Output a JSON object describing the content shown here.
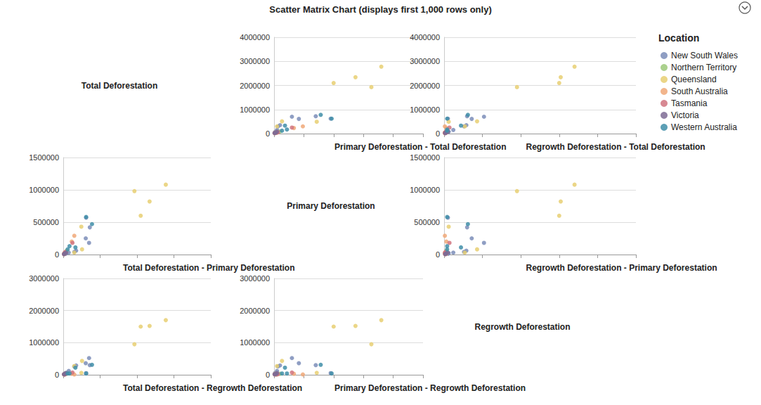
{
  "chart_data": {
    "type": "scatter",
    "title": "Scatter Matrix Chart (displays first 1,000 rows only)",
    "legend": "right",
    "legend_title": "Location",
    "grid": true,
    "tick_labels": "y",
    "marker": "circle",
    "variables": [
      "Total Deforestation",
      "Primary Deforestation",
      "Regrowth Deforestation"
    ],
    "series": [
      {
        "name": "New South Wales",
        "color": "#7b8db8",
        "values": [
          [
            700000,
            180000,
            520000
          ],
          [
            610000,
            250000,
            360000
          ],
          [
            720000,
            420000,
            300000
          ],
          [
            620000,
            570000,
            50000
          ],
          [
            350000,
            60000,
            290000
          ],
          [
            300000,
            40000,
            260000
          ],
          [
            150000,
            30000,
            120000
          ],
          [
            80000,
            20000,
            60000
          ],
          [
            60000,
            10000,
            50000
          ]
        ]
      },
      {
        "name": "Northern Territory",
        "color": "#9cc97a",
        "values": [
          [
            90000,
            60000,
            30000
          ],
          [
            50000,
            30000,
            20000
          ],
          [
            30000,
            20000,
            10000
          ]
        ]
      },
      {
        "name": "Queensland",
        "color": "#e8cf72",
        "values": [
          [
            1930000,
            980000,
            950000
          ],
          [
            2100000,
            600000,
            1500000
          ],
          [
            2340000,
            820000,
            1520000
          ],
          [
            2780000,
            1080000,
            1700000
          ],
          [
            490000,
            430000,
            60000
          ],
          [
            510000,
            80000,
            430000
          ],
          [
            300000,
            30000,
            270000
          ]
        ]
      },
      {
        "name": "South Australia",
        "color": "#f0a878",
        "values": [
          [
            300000,
            290000,
            10000
          ],
          [
            230000,
            200000,
            30000
          ],
          [
            40000,
            10000,
            30000
          ],
          [
            20000,
            5000,
            15000
          ]
        ]
      },
      {
        "name": "Tasmania",
        "color": "#d0737f",
        "values": [
          [
            60000,
            40000,
            20000
          ],
          [
            40000,
            30000,
            10000
          ],
          [
            20000,
            10000,
            10000
          ],
          [
            250000,
            180000,
            70000
          ]
        ]
      },
      {
        "name": "Victoria",
        "color": "#7e6b94",
        "values": [
          [
            50000,
            20000,
            30000
          ],
          [
            30000,
            10000,
            20000
          ],
          [
            80000,
            30000,
            50000
          ],
          [
            20000,
            5000,
            15000
          ]
        ]
      },
      {
        "name": "Western Australia",
        "color": "#3f8ea8",
        "values": [
          [
            780000,
            470000,
            310000
          ],
          [
            620000,
            580000,
            40000
          ],
          [
            170000,
            130000,
            40000
          ],
          [
            120000,
            80000,
            40000
          ],
          [
            330000,
            110000,
            220000
          ]
        ]
      }
    ],
    "panels": [
      {
        "title": "Total Deforestation - Primary Deforestation",
        "x_variable": "Total Deforestation",
        "y_variable": "Primary Deforestation",
        "xlim": [
          0,
          4000000
        ],
        "ylim": [
          0,
          1500000
        ],
        "yticks": [
          0,
          500000,
          1000000,
          1500000
        ]
      },
      {
        "title": "Total Deforestation - Regrowth Deforestation",
        "x_variable": "Total Deforestation",
        "y_variable": "Regrowth Deforestation",
        "xlim": [
          0,
          4000000
        ],
        "ylim": [
          0,
          3000000
        ],
        "yticks": [
          0,
          1000000,
          2000000,
          3000000
        ]
      },
      {
        "title": "Primary Deforestation - Total Deforestation",
        "x_variable": "Primary Deforestation",
        "y_variable": "Total Deforestation",
        "xlim": [
          0,
          1500000
        ],
        "ylim": [
          0,
          4000000
        ],
        "yticks": [
          0,
          1000000,
          2000000,
          3000000,
          4000000
        ]
      },
      {
        "title": "Primary Deforestation - Regrowth Deforestation",
        "x_variable": "Primary Deforestation",
        "y_variable": "Regrowth Deforestation",
        "xlim": [
          0,
          1500000
        ],
        "ylim": [
          0,
          3000000
        ],
        "yticks": [
          0,
          1000000,
          2000000,
          3000000
        ]
      },
      {
        "title": "Regrowth Deforestation - Total Deforestation",
        "x_variable": "Regrowth Deforestation",
        "y_variable": "Total Deforestation",
        "xlim": [
          0,
          2500000
        ],
        "ylim": [
          0,
          4000000
        ],
        "yticks": [
          0,
          1000000,
          2000000,
          3000000,
          4000000
        ]
      },
      {
        "title": "Regrowth Deforestation - Primary Deforestation",
        "x_variable": "Regrowth Deforestation",
        "y_variable": "Primary Deforestation",
        "xlim": [
          0,
          2500000
        ],
        "ylim": [
          0,
          1500000
        ],
        "yticks": [
          0,
          500000,
          1000000,
          1500000
        ]
      }
    ]
  }
}
